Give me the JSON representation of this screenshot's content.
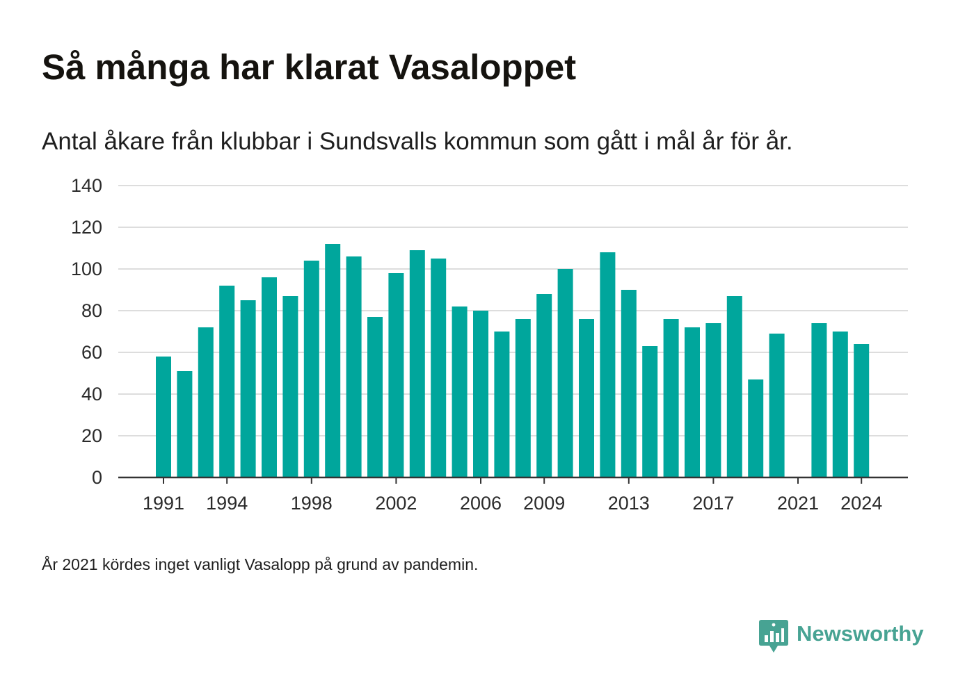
{
  "title": "Så många har klarat Vasaloppet",
  "subtitle": "Antal åkare från klubbar i Sundsvalls kommun som gått i mål år för år.",
  "footnote": "År 2021 kördes inget vanligt Vasalopp på grund av pandemin.",
  "brand": {
    "name": "Newsworthy",
    "icon": "newsworthy-logo-icon",
    "color": "#47a393"
  },
  "colors": {
    "bar": "#00a69c",
    "grid": "#dddddd",
    "axis": "#333333"
  },
  "chart_data": {
    "type": "bar",
    "title": "Så många har klarat Vasaloppet",
    "subtitle": "Antal åkare från klubbar i Sundsvalls kommun som gått i mål år för år.",
    "xlabel": "",
    "ylabel": "",
    "ylim": [
      0,
      140
    ],
    "yticks": [
      0,
      20,
      40,
      60,
      80,
      100,
      120,
      140
    ],
    "xticks": [
      1991,
      1994,
      1998,
      2002,
      2006,
      2009,
      2013,
      2017,
      2021,
      2024
    ],
    "grid": "horizontal",
    "categories": [
      1991,
      1992,
      1993,
      1994,
      1995,
      1996,
      1997,
      1998,
      1999,
      2000,
      2001,
      2002,
      2003,
      2004,
      2005,
      2006,
      2007,
      2008,
      2009,
      2010,
      2011,
      2012,
      2013,
      2014,
      2015,
      2016,
      2017,
      2018,
      2019,
      2020,
      2021,
      2022,
      2023,
      2024
    ],
    "values": [
      58,
      51,
      72,
      92,
      85,
      96,
      87,
      104,
      112,
      106,
      77,
      98,
      109,
      105,
      82,
      80,
      70,
      76,
      88,
      100,
      76,
      108,
      90,
      63,
      76,
      72,
      74,
      87,
      47,
      69,
      null,
      74,
      70,
      64
    ]
  }
}
